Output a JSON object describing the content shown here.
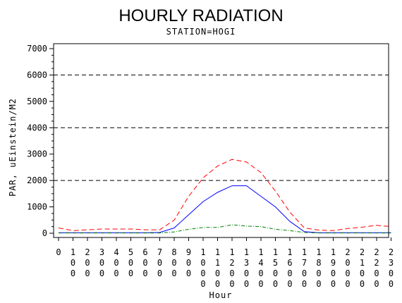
{
  "chart_data": {
    "type": "line",
    "title": "HOURLY RADIATION",
    "subtitle": "STATION=HOGI",
    "xlabel": "Hour",
    "ylabel": "PAR, uEinstein/M2",
    "ylim": [
      0,
      7000
    ],
    "yticks": [
      0,
      1000,
      2000,
      3000,
      4000,
      5000,
      6000,
      7000
    ],
    "ytick_labels": [
      "0",
      "1000",
      "2000",
      "3000",
      "4000",
      "5000",
      "6000",
      "7000"
    ],
    "reference_lines": [
      2000,
      4000,
      6000
    ],
    "x": [
      0,
      100,
      200,
      300,
      400,
      500,
      600,
      700,
      800,
      900,
      1000,
      1100,
      1200,
      1300,
      1400,
      1500,
      1600,
      1700,
      1800,
      1900,
      2000,
      2100,
      2200,
      2300
    ],
    "x_tick_labels": [
      "0",
      "100",
      "200",
      "300",
      "400",
      "500",
      "600",
      "700",
      "800",
      "900",
      "1000",
      "1100",
      "1200",
      "1300",
      "1400",
      "1500",
      "1600",
      "1700",
      "1800",
      "1900",
      "2000",
      "2100",
      "2200",
      "2300"
    ],
    "series": [
      {
        "color": "#ff0000",
        "dash": "dashed",
        "values": [
          200,
          100,
          130,
          160,
          160,
          160,
          130,
          130,
          500,
          1400,
          2100,
          2550,
          2800,
          2700,
          2300,
          1600,
          800,
          200,
          120,
          100,
          180,
          230,
          300,
          250
        ]
      },
      {
        "color": "#0000ff",
        "dash": "solid",
        "values": [
          20,
          20,
          20,
          20,
          20,
          20,
          20,
          30,
          200,
          700,
          1200,
          1550,
          1800,
          1800,
          1400,
          1000,
          450,
          60,
          20,
          20,
          20,
          20,
          20,
          20
        ]
      },
      {
        "color": "#008000",
        "dash": "dashdot",
        "values": [
          10,
          10,
          10,
          10,
          10,
          10,
          10,
          10,
          50,
          150,
          220,
          220,
          320,
          270,
          250,
          150,
          100,
          30,
          10,
          10,
          10,
          10,
          10,
          10
        ]
      }
    ]
  }
}
